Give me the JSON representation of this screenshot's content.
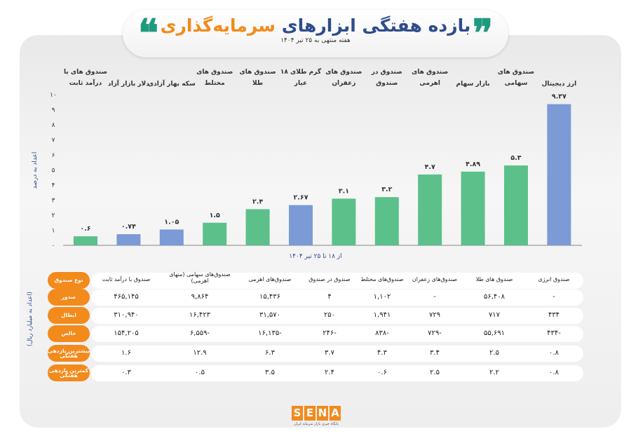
{
  "header": {
    "title_part1": "بازده هفتگی ابزارهای",
    "title_part2": "سرمایه‌گذاری",
    "subtitle": "هفته منتهی به ۲۵ تیر ۱۴۰۴"
  },
  "colors": {
    "green": "#5cc08a",
    "blue": "#7b9ad6",
    "orange": "#f28a1c",
    "navy": "#2f4d8c",
    "teal": "#1f9a7e"
  },
  "chart_data": {
    "type": "bar",
    "ylabel": "اعداد به درصد",
    "xlabel": "از ۱۸ تا ۲۵ تیر ۱۴۰۴",
    "ylim": [
      0,
      10
    ],
    "yticks": [
      "۰",
      "۱",
      "۲",
      "۳",
      "۴",
      "۵",
      "۶",
      "۷",
      "۸",
      "۹",
      "۱۰"
    ],
    "grid": false,
    "categories": [
      "صندوق های با|درآمد ثابت",
      "دلار بازار آزاد",
      "سکه بهار آزادی",
      "صندوق های|مختلط",
      "صندوق های|طلا",
      "گرم طلای ۱۸|عیار",
      "صندوق های|زعفران",
      "صندوق در|صندوق",
      "صندوق های|اهرمی",
      "بازار سهام",
      "صندوق های|سهامی",
      "ارز دیجیتال"
    ],
    "values": [
      0.6,
      0.74,
      1.05,
      1.5,
      2.4,
      2.67,
      3.1,
      3.2,
      4.7,
      4.89,
      5.3,
      9.37
    ],
    "value_labels": [
      "۰.۶",
      "۰.۷۴",
      "۱.۰۵",
      "۱.۵",
      "۲.۴",
      "۲.۶۷",
      "۳.۱",
      "۳.۲",
      "۴.۷",
      "۴.۸۹",
      "۵.۳",
      "۹.۳۷"
    ],
    "bar_colors": [
      "green",
      "blue",
      "blue",
      "green",
      "green",
      "blue",
      "green",
      "green",
      "green",
      "green",
      "green",
      "blue"
    ]
  },
  "table": {
    "unit_note": "(اعداد به میلیارد ریال)",
    "row_labels": [
      "نوع صندوق",
      "صدور",
      "ابطال",
      "خالص",
      "بیشترین بازدهی هفتگی",
      "کمترین بازدهی هفتگی"
    ],
    "columns": [
      {
        "name": "صندوق انرژی",
        "values": [
          "-",
          "۴۳۴",
          "-۴۳۴",
          "۰.۸",
          "۰.۸"
        ]
      },
      {
        "name": "صندوق های طلا",
        "values": [
          "۵۶,۴۰۸",
          "۷۱۷",
          "۵۵,۶۹۱",
          "۲.۵",
          "۲.۲"
        ]
      },
      {
        "name": "صندوق‌های زعفران",
        "values": [
          "-",
          "۷۲۹",
          "-۷۲۹",
          "۳.۴",
          "۲.۵"
        ]
      },
      {
        "name": "صندوق‌های مختلط",
        "values": [
          "۱,۱۰۲",
          "۱,۹۴۱",
          "-۸۳۸",
          "۴.۳",
          "۰.۶"
        ]
      },
      {
        "name": "صندوق در صندوق",
        "values": [
          "۴",
          "۲۵۰",
          "-۲۴۶",
          "۳.۷",
          "۲.۴"
        ]
      },
      {
        "name": "صندوق‌های اهرمی",
        "values": [
          "۱۵,۴۳۶",
          "۳۱,۵۷۰",
          "-۱۶,۱۳۵",
          "۶.۳",
          "۳.۵"
        ]
      },
      {
        "name": "صندوق‌های سهامی (منهای اهرمی)",
        "values": [
          "۹,۸۶۴",
          "۱۶,۴۲۳",
          "-۶,۵۵۹",
          "۱۲.۹",
          "۰.۵"
        ]
      },
      {
        "name": "صندوق با درآمد ثابت",
        "values": [
          "۴۶۵,۱۴۵",
          "۳۱۰,۹۴۰",
          "۱۵۴,۲۰۵",
          "۱.۶",
          "۰.۳"
        ]
      }
    ]
  },
  "logo": {
    "text": "SENA",
    "tagline": "پایگاه خبری بازار سرمایه ایران"
  }
}
